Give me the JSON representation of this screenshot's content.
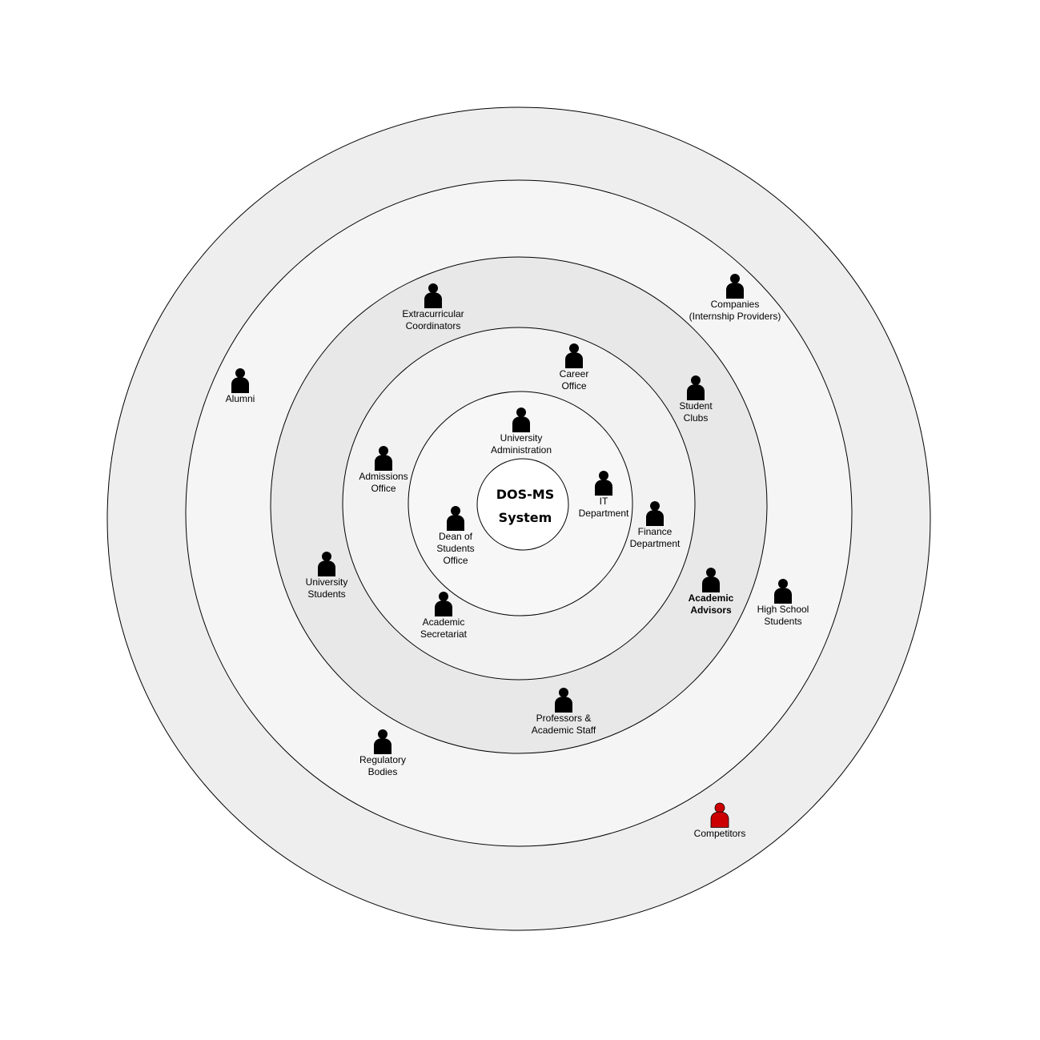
{
  "center": {
    "line1": "DOS-MS",
    "line2": "System"
  },
  "colors": {
    "ring_outer": "#eeeeee",
    "ring_4": "#f5f5f5",
    "ring_3": "#e8e8e8",
    "ring_2": "#f2f2f2",
    "ring_1": "#f7f7f7",
    "core": "#ffffff",
    "stakeholder_default": "#000000",
    "stakeholder_competitor": "#cc0000"
  },
  "stakeholders": [
    {
      "id": "university-administration",
      "label": "University\nAdministration",
      "icon": "person-icon"
    },
    {
      "id": "it-department",
      "label": "IT\nDepartment",
      "icon": "person-icon"
    },
    {
      "id": "dean-of-students-office",
      "label": "Dean of\nStudents\nOffice",
      "icon": "person-icon"
    },
    {
      "id": "career-office",
      "label": "Career\nOffice",
      "icon": "person-icon"
    },
    {
      "id": "admissions-office",
      "label": "Admissions\nOffice",
      "icon": "person-icon"
    },
    {
      "id": "finance-department",
      "label": "Finance\nDepartment",
      "icon": "person-icon"
    },
    {
      "id": "academic-secretariat",
      "label": "Academic\nSecretariat",
      "icon": "person-icon"
    },
    {
      "id": "extracurricular-coordinators",
      "label": "Extracurricular\nCoordinators",
      "icon": "person-icon"
    },
    {
      "id": "student-clubs",
      "label": "Student\nClubs",
      "icon": "person-icon"
    },
    {
      "id": "university-students",
      "label": "University\nStudents",
      "icon": "person-icon"
    },
    {
      "id": "academic-advisors",
      "label": "Academic\nAdvisors",
      "icon": "person-icon"
    },
    {
      "id": "professors-academic-staff",
      "label": "Professors &\nAcademic Staff",
      "icon": "person-icon"
    },
    {
      "id": "companies",
      "label": "Companies\n(Internship Providers)",
      "icon": "person-icon"
    },
    {
      "id": "alumni",
      "label": "Alumni",
      "icon": "person-icon"
    },
    {
      "id": "high-school-students",
      "label": "High School\nStudents",
      "icon": "person-icon"
    },
    {
      "id": "regulatory-bodies",
      "label": "Regulatory\nBodies",
      "icon": "person-icon"
    },
    {
      "id": "competitors",
      "label": "Competitors",
      "icon": "person-icon"
    }
  ]
}
